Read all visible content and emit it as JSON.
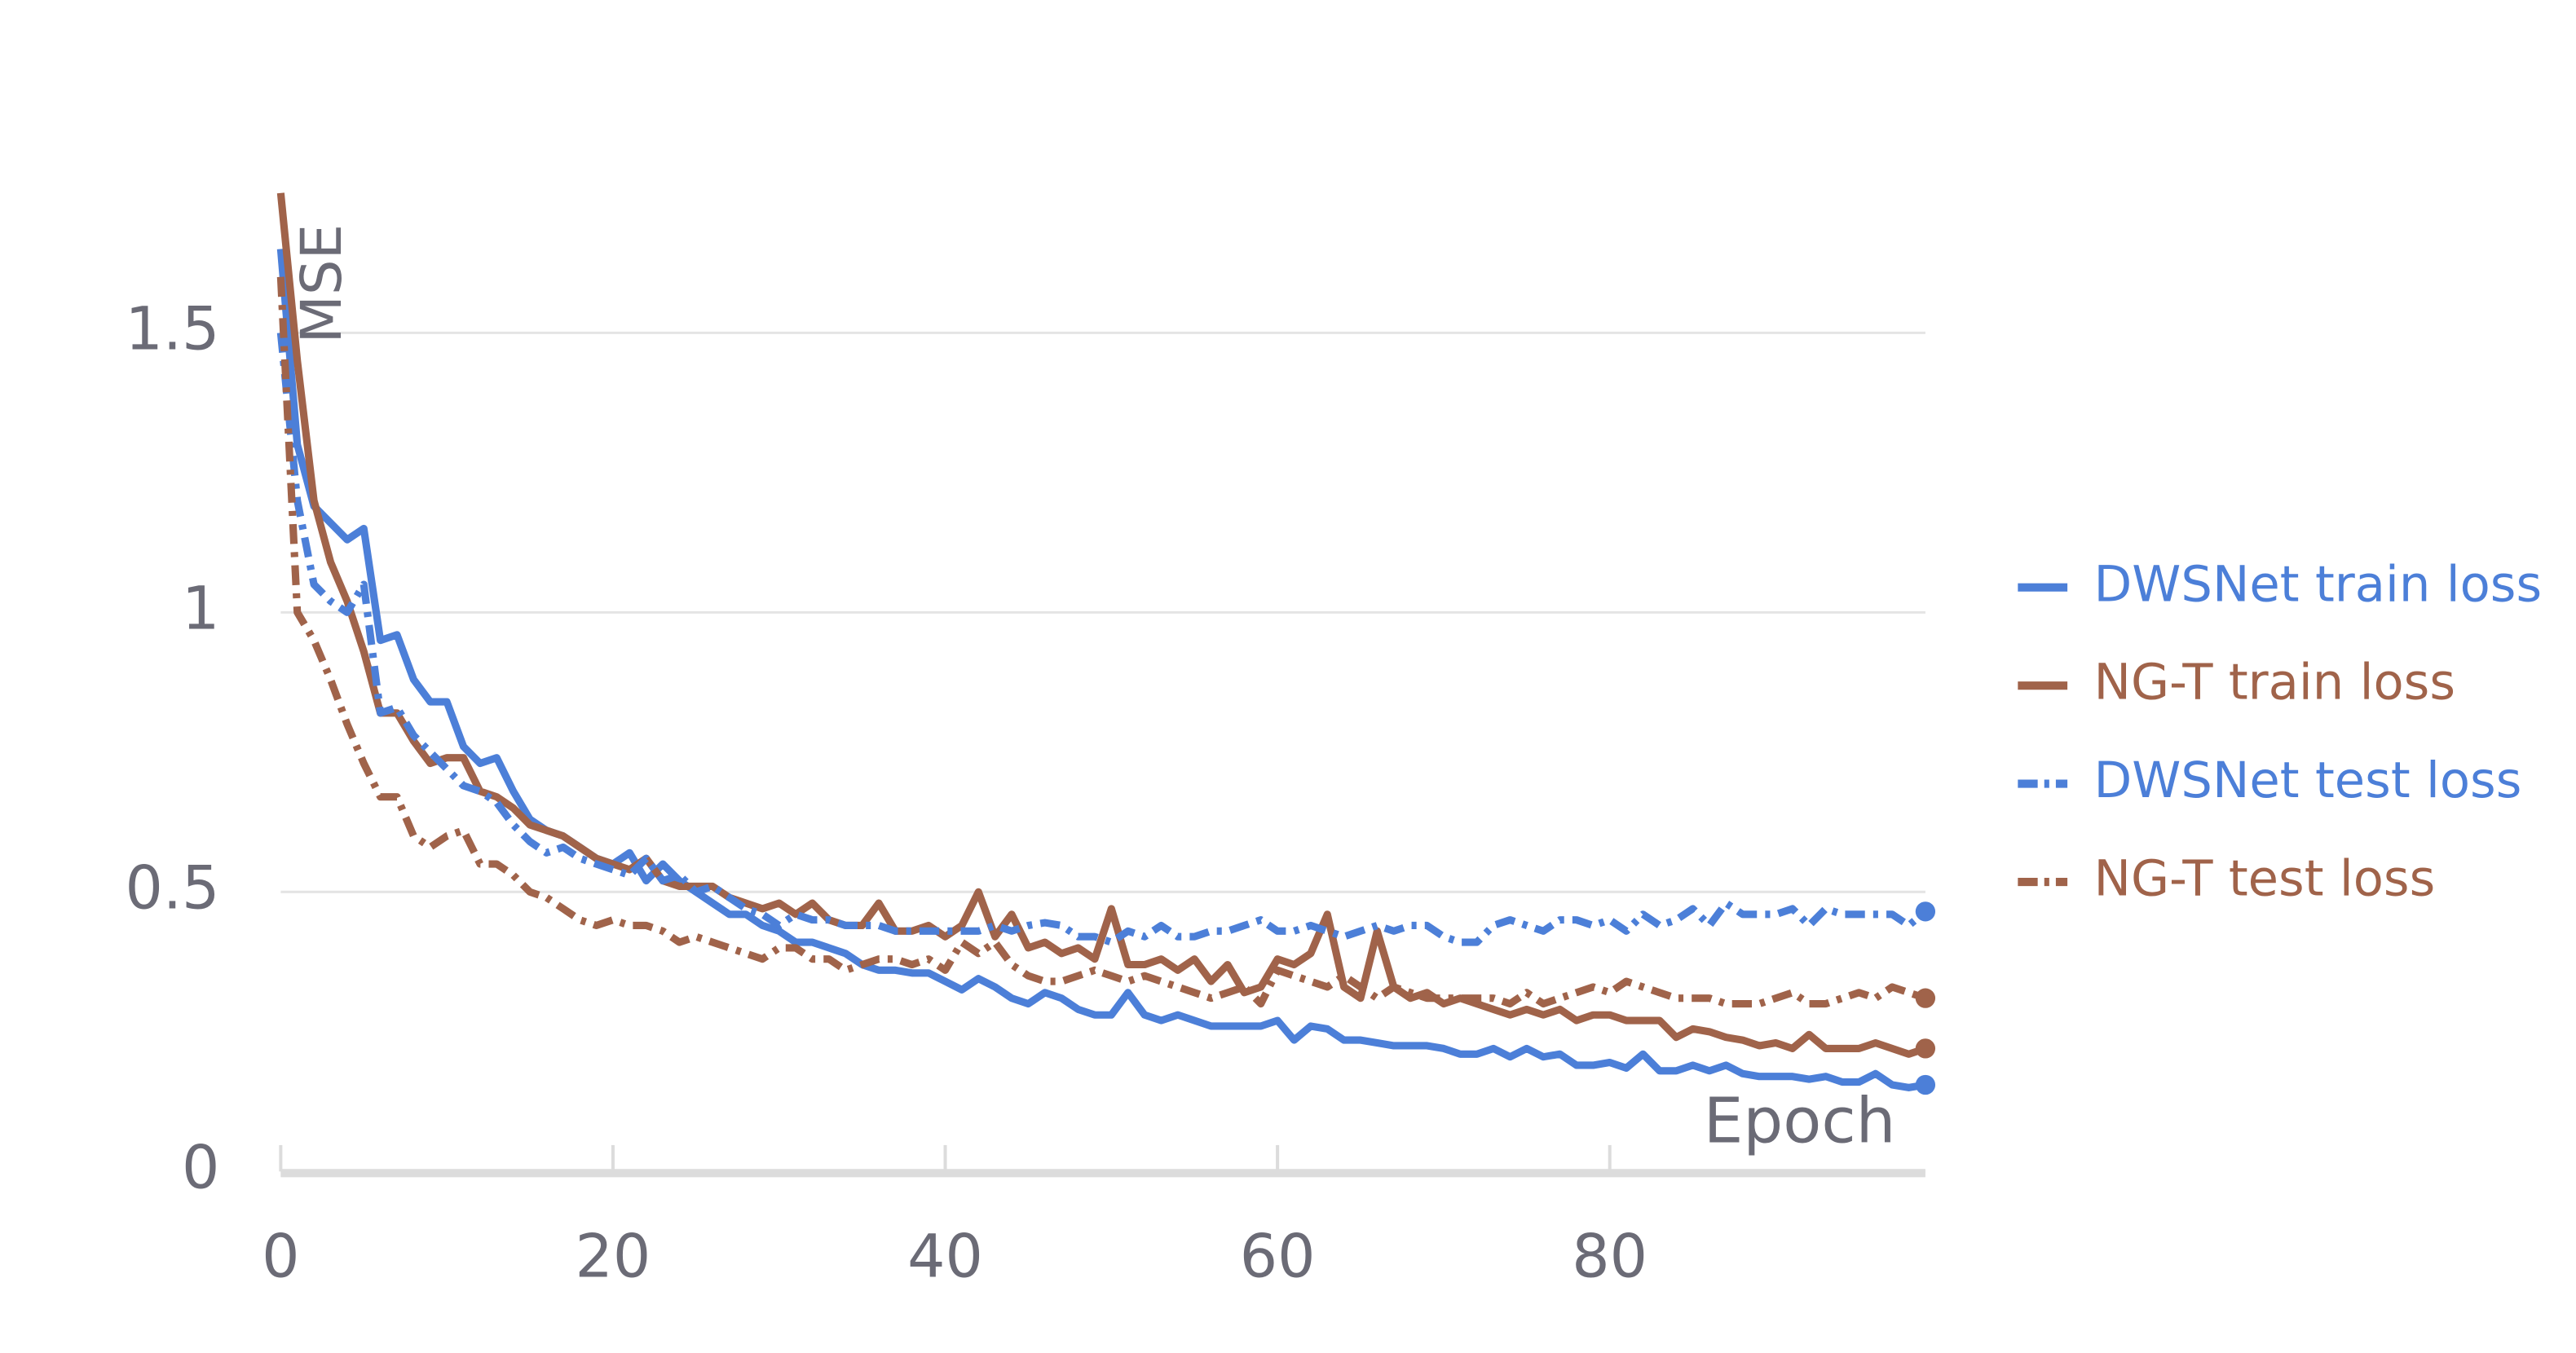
{
  "chart_data": {
    "type": "line",
    "y_label": "MSE",
    "x_label": "Epoch",
    "x": [
      0,
      1,
      2,
      3,
      4,
      5,
      6,
      7,
      8,
      9,
      10,
      11,
      12,
      13,
      14,
      15,
      16,
      17,
      18,
      19,
      20,
      21,
      22,
      23,
      24,
      25,
      26,
      27,
      28,
      29,
      30,
      31,
      32,
      33,
      34,
      35,
      36,
      37,
      38,
      39,
      40,
      41,
      42,
      43,
      44,
      45,
      46,
      47,
      48,
      49,
      50,
      51,
      52,
      53,
      54,
      55,
      56,
      57,
      58,
      59,
      60,
      61,
      62,
      63,
      64,
      65,
      66,
      67,
      68,
      69,
      70,
      71,
      72,
      73,
      74,
      75,
      76,
      77,
      78,
      79,
      80,
      81,
      82,
      83,
      84,
      85,
      86,
      87,
      88,
      89,
      90,
      91,
      92,
      93,
      94,
      95,
      96,
      97,
      98,
      99
    ],
    "series": [
      {
        "name": "DWSNet train loss",
        "color": "#4c7fd8",
        "dash": "solid",
        "values": [
          1.65,
          1.3,
          1.19,
          1.16,
          1.13,
          1.15,
          0.95,
          0.96,
          0.88,
          0.84,
          0.84,
          0.76,
          0.73,
          0.74,
          0.68,
          0.63,
          0.61,
          0.6,
          0.58,
          0.56,
          0.55,
          0.57,
          0.52,
          0.55,
          0.52,
          0.5,
          0.48,
          0.46,
          0.46,
          0.44,
          0.43,
          0.41,
          0.41,
          0.4,
          0.39,
          0.37,
          0.36,
          0.36,
          0.355,
          0.355,
          0.34,
          0.325,
          0.345,
          0.33,
          0.31,
          0.3,
          0.32,
          0.31,
          0.29,
          0.28,
          0.28,
          0.32,
          0.28,
          0.27,
          0.28,
          0.27,
          0.26,
          0.26,
          0.26,
          0.26,
          0.27,
          0.235,
          0.26,
          0.255,
          0.235,
          0.235,
          0.23,
          0.225,
          0.225,
          0.225,
          0.22,
          0.21,
          0.21,
          0.22,
          0.205,
          0.22,
          0.205,
          0.21,
          0.19,
          0.19,
          0.195,
          0.185,
          0.21,
          0.18,
          0.18,
          0.19,
          0.18,
          0.19,
          0.175,
          0.17,
          0.17,
          0.17,
          0.165,
          0.17,
          0.16,
          0.16,
          0.175,
          0.155,
          0.15,
          0.155
        ]
      },
      {
        "name": "NG-T train loss",
        "color": "#a0634a",
        "dash": "solid",
        "values": [
          1.75,
          1.45,
          1.2,
          1.09,
          1.02,
          0.93,
          0.82,
          0.82,
          0.77,
          0.73,
          0.74,
          0.74,
          0.68,
          0.67,
          0.65,
          0.62,
          0.61,
          0.6,
          0.58,
          0.56,
          0.55,
          0.54,
          0.56,
          0.52,
          0.51,
          0.51,
          0.51,
          0.49,
          0.48,
          0.47,
          0.48,
          0.46,
          0.48,
          0.45,
          0.44,
          0.44,
          0.48,
          0.43,
          0.43,
          0.44,
          0.42,
          0.44,
          0.5,
          0.42,
          0.46,
          0.4,
          0.41,
          0.39,
          0.4,
          0.38,
          0.47,
          0.37,
          0.37,
          0.38,
          0.36,
          0.38,
          0.34,
          0.37,
          0.32,
          0.33,
          0.38,
          0.37,
          0.39,
          0.46,
          0.33,
          0.31,
          0.43,
          0.33,
          0.31,
          0.32,
          0.3,
          0.31,
          0.3,
          0.29,
          0.28,
          0.29,
          0.28,
          0.29,
          0.27,
          0.28,
          0.28,
          0.27,
          0.27,
          0.27,
          0.24,
          0.255,
          0.25,
          0.24,
          0.235,
          0.225,
          0.23,
          0.22,
          0.245,
          0.22,
          0.22,
          0.22,
          0.23,
          0.22,
          0.21,
          0.22
        ]
      },
      {
        "name": "DWSNet test loss",
        "color": "#4c7fd8",
        "dash": "dashdot",
        "values": [
          1.5,
          1.2,
          1.05,
          1.02,
          1.0,
          1.05,
          0.82,
          0.83,
          0.78,
          0.75,
          0.72,
          0.69,
          0.68,
          0.66,
          0.62,
          0.59,
          0.57,
          0.58,
          0.56,
          0.55,
          0.54,
          0.53,
          0.56,
          0.52,
          0.53,
          0.5,
          0.51,
          0.49,
          0.47,
          0.46,
          0.44,
          0.46,
          0.45,
          0.45,
          0.44,
          0.44,
          0.44,
          0.43,
          0.43,
          0.43,
          0.43,
          0.43,
          0.43,
          0.44,
          0.43,
          0.44,
          0.445,
          0.44,
          0.42,
          0.42,
          0.41,
          0.43,
          0.42,
          0.44,
          0.42,
          0.42,
          0.43,
          0.43,
          0.44,
          0.45,
          0.43,
          0.43,
          0.44,
          0.43,
          0.42,
          0.43,
          0.44,
          0.43,
          0.44,
          0.44,
          0.42,
          0.41,
          0.41,
          0.44,
          0.45,
          0.44,
          0.43,
          0.45,
          0.45,
          0.44,
          0.45,
          0.43,
          0.46,
          0.44,
          0.45,
          0.47,
          0.44,
          0.48,
          0.46,
          0.46,
          0.46,
          0.47,
          0.44,
          0.47,
          0.46,
          0.46,
          0.46,
          0.46,
          0.44,
          0.465
        ]
      },
      {
        "name": "NG-T test loss",
        "color": "#a0634a",
        "dash": "dashdot",
        "values": [
          1.6,
          1.0,
          0.95,
          0.88,
          0.8,
          0.73,
          0.67,
          0.67,
          0.6,
          0.58,
          0.6,
          0.61,
          0.55,
          0.55,
          0.53,
          0.5,
          0.49,
          0.47,
          0.45,
          0.44,
          0.45,
          0.44,
          0.44,
          0.43,
          0.41,
          0.42,
          0.41,
          0.4,
          0.39,
          0.38,
          0.4,
          0.4,
          0.38,
          0.38,
          0.36,
          0.37,
          0.38,
          0.38,
          0.37,
          0.38,
          0.36,
          0.41,
          0.39,
          0.41,
          0.37,
          0.35,
          0.34,
          0.34,
          0.35,
          0.36,
          0.35,
          0.34,
          0.35,
          0.34,
          0.33,
          0.32,
          0.31,
          0.32,
          0.33,
          0.3,
          0.36,
          0.35,
          0.34,
          0.33,
          0.35,
          0.33,
          0.31,
          0.33,
          0.32,
          0.31,
          0.31,
          0.31,
          0.31,
          0.31,
          0.3,
          0.32,
          0.3,
          0.31,
          0.32,
          0.33,
          0.32,
          0.34,
          0.33,
          0.32,
          0.31,
          0.31,
          0.31,
          0.3,
          0.3,
          0.3,
          0.31,
          0.32,
          0.3,
          0.3,
          0.31,
          0.32,
          0.31,
          0.33,
          0.32,
          0.31
        ]
      }
    ],
    "xlim": [
      0,
      99
    ],
    "ylim": [
      0,
      1.75
    ],
    "xticks": [
      0,
      20,
      40,
      60,
      80
    ],
    "yticks": [
      0,
      0.5,
      1,
      1.5
    ],
    "grid": true,
    "legend": "right",
    "end_markers": true
  }
}
